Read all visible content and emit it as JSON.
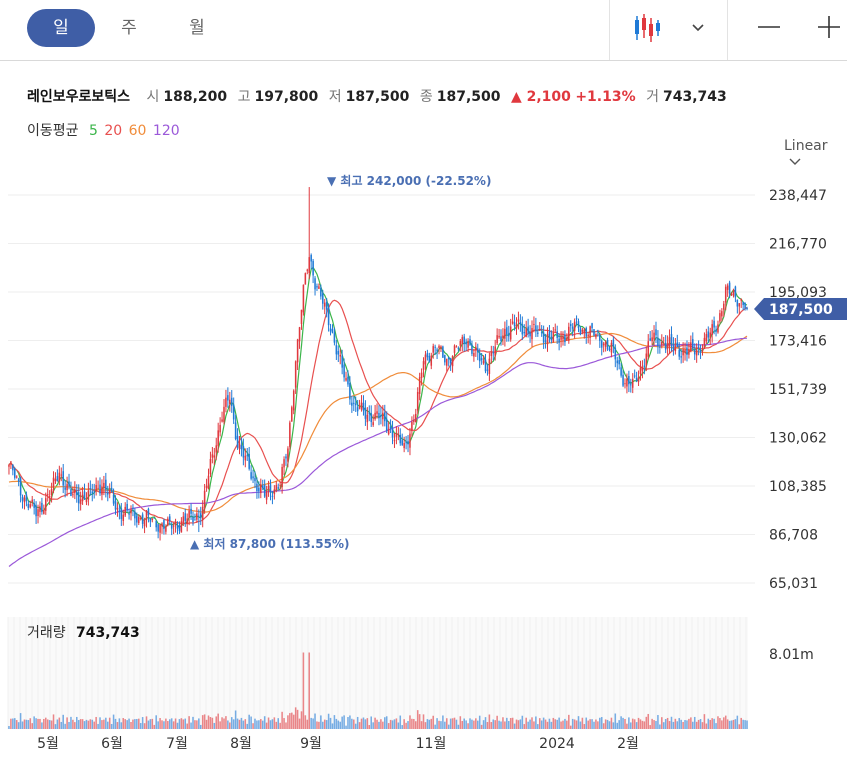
{
  "tabs": [
    {
      "label": "일",
      "active": true
    },
    {
      "label": "주",
      "active": false
    },
    {
      "label": "월",
      "active": false
    }
  ],
  "toolbar": {
    "chart_type_icon": "candlestick-icon",
    "dropdown_icon": "chevron-down-icon",
    "minus": "—",
    "plus": "+"
  },
  "info": {
    "name": "레인보우로보틱스",
    "open_label": "시",
    "open": "188,200",
    "high_label": "고",
    "high": "197,800",
    "low_label": "저",
    "low": "187,500",
    "close_label": "종",
    "close": "187,500",
    "change": "▲ 2,100",
    "change_pct": "+1.13%",
    "volume_label": "거",
    "volume": "743,743"
  },
  "ma": {
    "label": "이동평균",
    "periods": [
      "5",
      "20",
      "60",
      "120"
    ],
    "colors": [
      "#3bb54a",
      "#e8504f",
      "#f08c3a",
      "#9b59d9"
    ]
  },
  "scale_label": "Linear",
  "colors": {
    "up": "#e0383e",
    "down": "#1f7ad6",
    "price_tag": "#3f5ea6",
    "annotation": "#4a6fb3"
  },
  "chart_data": {
    "type": "candlestick",
    "y_ticks": [
      "238,447",
      "216,770",
      "195,093",
      "173,416",
      "151,739",
      "130,062",
      "108,385",
      "86,708",
      "65,031"
    ],
    "x_labels": [
      "5월",
      "6월",
      "7월",
      "8월",
      "9월",
      "11월",
      "2024",
      "2월"
    ],
    "current_price": "187,500",
    "high_annotation": "▼ 최고 242,000 (-22.52%)",
    "low_annotation": "▲ 최저 87,800 (113.55%)",
    "volume_label": "거래량",
    "volume_value": "743,743",
    "volume_tick": "8.01m",
    "anchors": [
      [
        0,
        118000
      ],
      [
        8,
        103000
      ],
      [
        14,
        96000
      ],
      [
        22,
        106000
      ],
      [
        26,
        115000
      ],
      [
        32,
        104000
      ],
      [
        42,
        104000
      ],
      [
        48,
        110000
      ],
      [
        56,
        98000
      ],
      [
        62,
        96000
      ],
      [
        70,
        94000
      ],
      [
        76,
        92000
      ],
      [
        82,
        90000
      ],
      [
        88,
        92000
      ],
      [
        96,
        95000
      ],
      [
        100,
        98000
      ],
      [
        104,
        118000
      ],
      [
        110,
        140000
      ],
      [
        114,
        148000
      ],
      [
        118,
        128000
      ],
      [
        126,
        112000
      ],
      [
        132,
        104000
      ],
      [
        140,
        110000
      ],
      [
        144,
        125000
      ],
      [
        148,
        165000
      ],
      [
        152,
        195000
      ],
      [
        155,
        212000
      ],
      [
        158,
        200000
      ],
      [
        166,
        180000
      ],
      [
        172,
        160000
      ],
      [
        178,
        145000
      ],
      [
        184,
        140000
      ],
      [
        190,
        140000
      ],
      [
        196,
        135000
      ],
      [
        204,
        125000
      ],
      [
        210,
        142000
      ],
      [
        214,
        165000
      ],
      [
        220,
        170000
      ],
      [
        226,
        165000
      ],
      [
        232,
        170000
      ],
      [
        236,
        175000
      ],
      [
        240,
        168000
      ],
      [
        246,
        162000
      ],
      [
        252,
        172000
      ],
      [
        256,
        178000
      ],
      [
        262,
        180000
      ],
      [
        268,
        178000
      ],
      [
        276,
        176000
      ],
      [
        284,
        174000
      ],
      [
        292,
        180000
      ],
      [
        298,
        178000
      ],
      [
        306,
        174000
      ],
      [
        312,
        168000
      ],
      [
        318,
        155000
      ],
      [
        322,
        153000
      ],
      [
        328,
        165000
      ],
      [
        332,
        175000
      ],
      [
        338,
        172000
      ],
      [
        344,
        170000
      ],
      [
        350,
        168000
      ],
      [
        356,
        170000
      ],
      [
        362,
        176000
      ],
      [
        366,
        182000
      ],
      [
        370,
        195000
      ],
      [
        374,
        194000
      ],
      [
        378,
        191000
      ],
      [
        381,
        187500
      ]
    ],
    "special": [
      [
        155,
        242000
      ],
      [
        98,
        87800
      ]
    ]
  }
}
